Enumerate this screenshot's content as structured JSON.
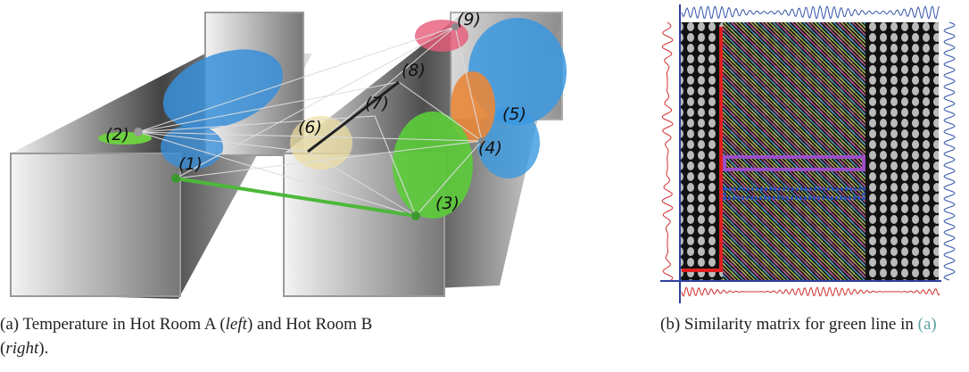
{
  "figure": {
    "panel_a": {
      "labels": [
        "(1)",
        "(2)",
        "(3)",
        "(4)",
        "(5)",
        "(6)",
        "(7)",
        "(8)",
        "(9)"
      ],
      "caption": [
        "(a) Temperature in Hot Room A (",
        "left",
        ") and Hot Room B (",
        "right",
        ")."
      ]
    },
    "panel_b": {
      "caption": [
        "(b) Similarity matrix for green line in ",
        "(a)"
      ]
    }
  }
}
